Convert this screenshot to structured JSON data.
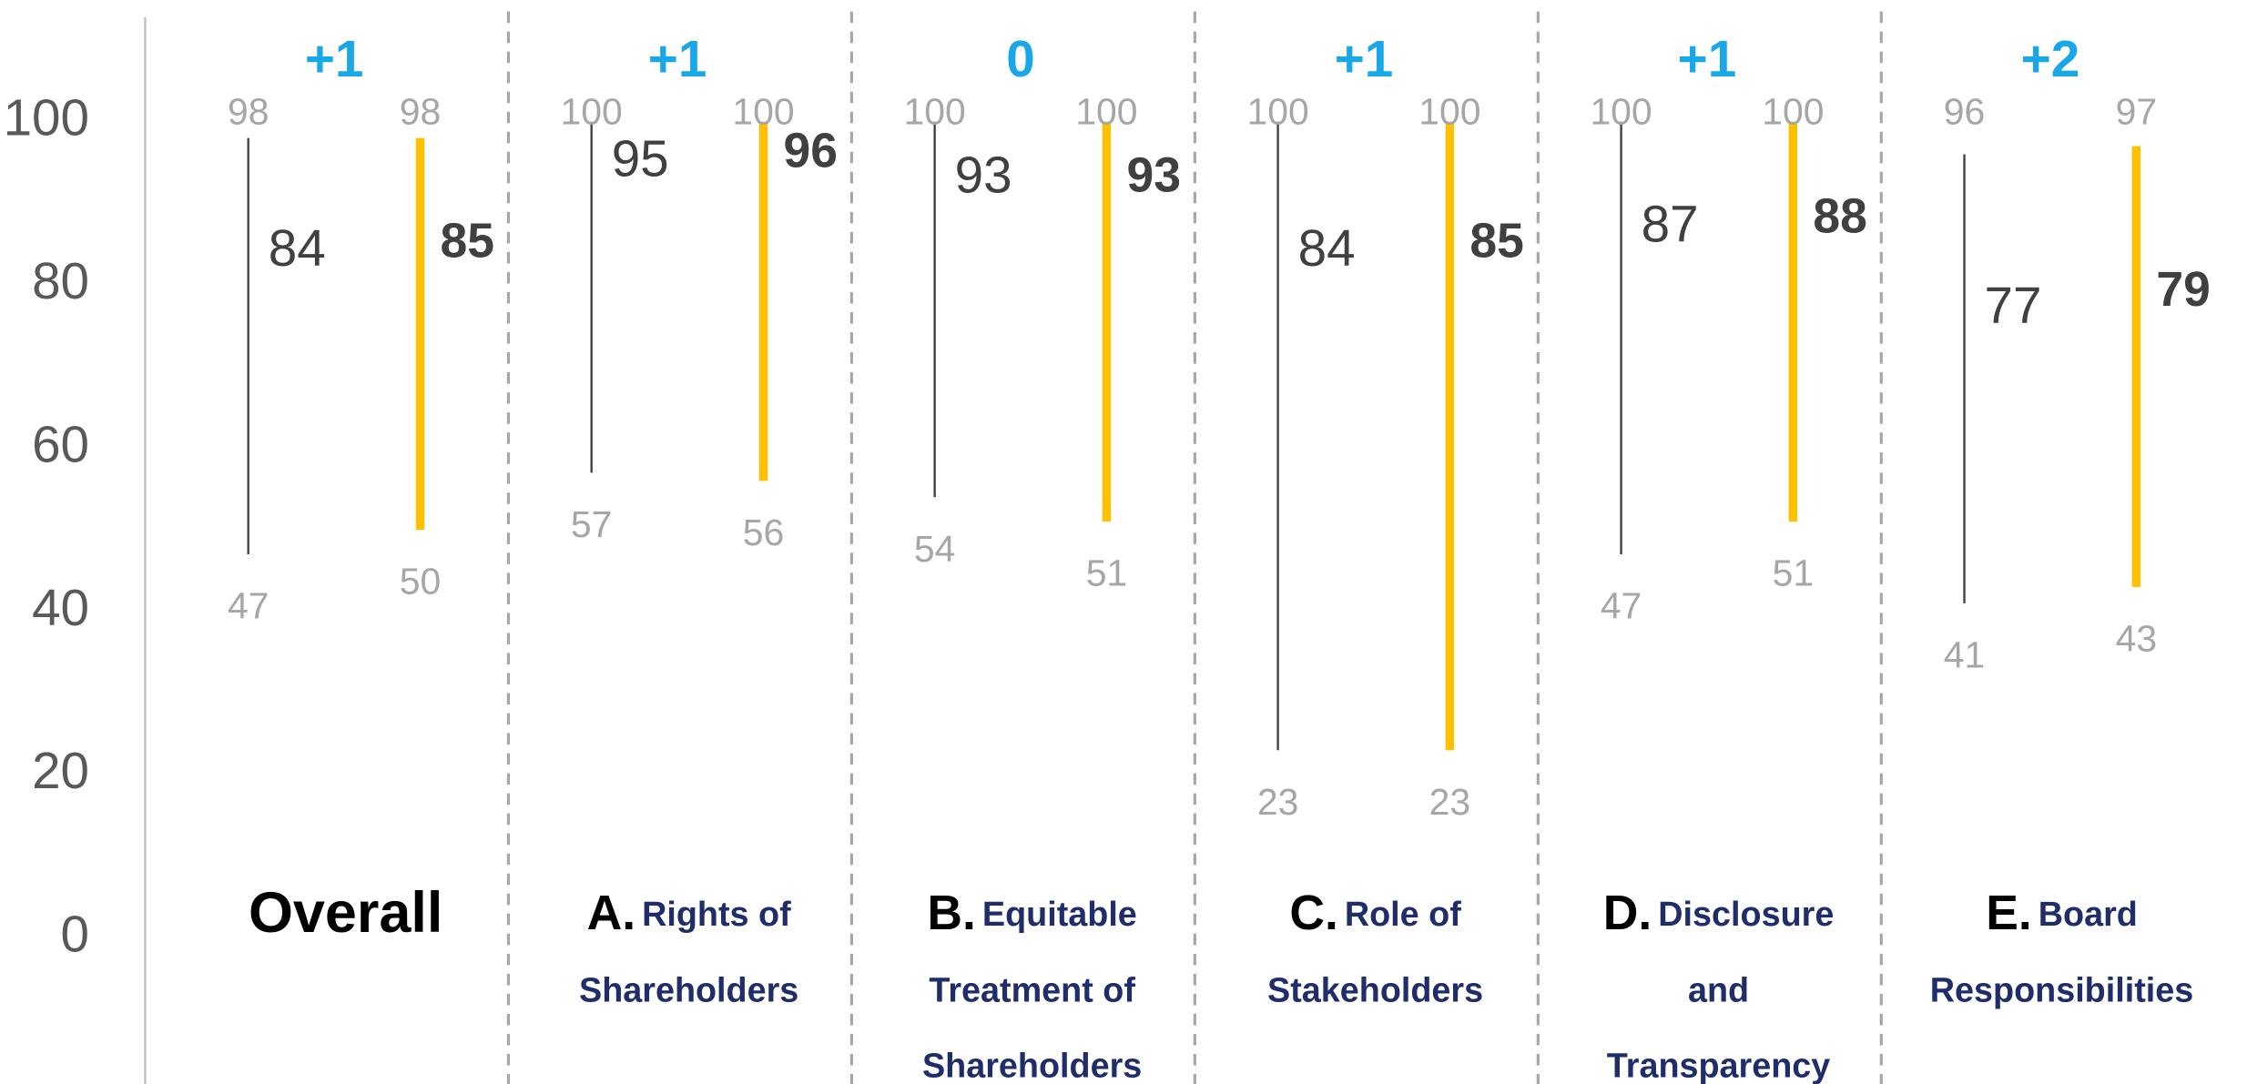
{
  "chart_data": {
    "type": "range",
    "ylim": [
      0,
      100
    ],
    "yticks": [
      0,
      20,
      40,
      60,
      80,
      100
    ],
    "categories": [
      {
        "label": [
          "Overall"
        ]
      },
      {
        "letter": "A.",
        "label": [
          "Rights of",
          "Shareholders"
        ]
      },
      {
        "letter": "B.",
        "label": [
          "Equitable",
          "Treatment of",
          "Shareholders"
        ]
      },
      {
        "letter": "C.",
        "label": [
          "Role of",
          "Stakeholders"
        ]
      },
      {
        "letter": "D.",
        "label": [
          "Disclosure",
          "and",
          "Transparency"
        ]
      },
      {
        "letter": "E.",
        "label": [
          "Board",
          "Responsibilities"
        ]
      }
    ],
    "changes": [
      "+1",
      "+1",
      "0",
      "+1",
      "+1",
      "+2"
    ],
    "change_color": "#1aa7e8",
    "series": [
      {
        "color": "#404040",
        "values": [
          84,
          95,
          93,
          84,
          87,
          77
        ],
        "max": [
          98,
          100,
          100,
          100,
          100,
          96
        ],
        "min": [
          47,
          57,
          54,
          23,
          47,
          41
        ]
      },
      {
        "color": "#ffc000",
        "values": [
          85,
          96,
          93,
          85,
          88,
          79
        ],
        "max": [
          98,
          100,
          100,
          100,
          100,
          97
        ],
        "min": [
          50,
          56,
          51,
          23,
          51,
          43
        ]
      }
    ]
  }
}
